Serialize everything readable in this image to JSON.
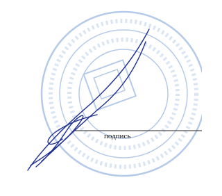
{
  "signature_line": {
    "label": "подпись"
  }
}
